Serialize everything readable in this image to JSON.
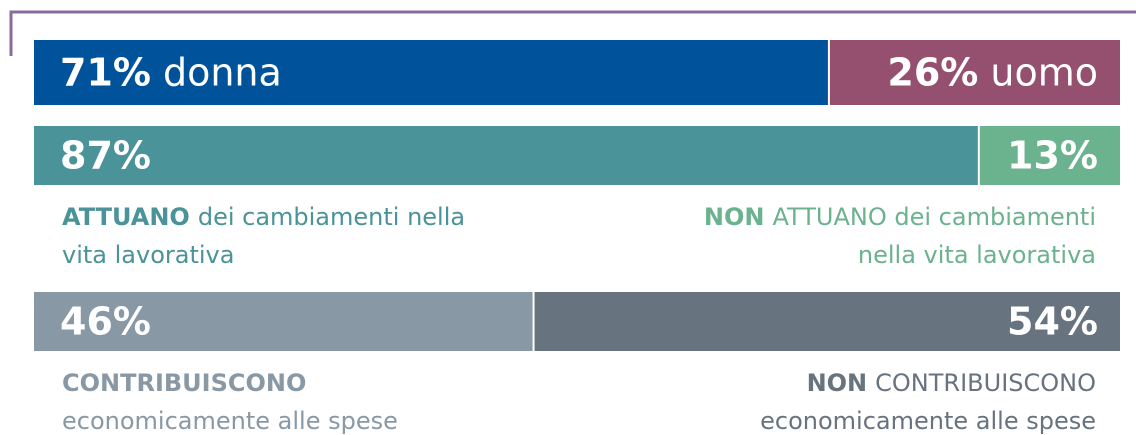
{
  "chart_data": [
    {
      "type": "stacked-bar",
      "series": [
        {
          "name": "donna",
          "color": "#00529b",
          "values": [
            71
          ],
          "value_labels": [
            "71%"
          ]
        },
        {
          "name": "uomo",
          "color": "#96506f",
          "values": [
            26
          ],
          "value_labels": [
            "26%"
          ]
        }
      ]
    },
    {
      "type": "stacked-bar",
      "series": [
        {
          "color": "#4a9399",
          "values": [
            87
          ],
          "value_labels": [
            "87%"
          ],
          "caption_lines": [
            [
              {
                "text": "ATTUANO",
                "strong": true
              },
              {
                "text": "dei cambiamenti nella"
              }
            ],
            [
              {
                "text": "vita lavorativa"
              }
            ]
          ]
        },
        {
          "color": "#6bb28f",
          "values": [
            13
          ],
          "value_labels": [
            "13%"
          ],
          "caption_lines": [
            [
              {
                "text": "NON",
                "strong": true
              },
              {
                "text": "ATTUANO dei cambiamenti"
              }
            ],
            [
              {
                "text": "nella vita lavorativa"
              }
            ]
          ]
        }
      ]
    },
    {
      "type": "stacked-bar",
      "series": [
        {
          "color": "#8898a5",
          "values": [
            46
          ],
          "value_labels": [
            "46%"
          ],
          "caption_lines": [
            [
              {
                "text": "CONTRIBUISCONO",
                "strong": true
              }
            ],
            [
              {
                "text": "economicamente alle spese"
              }
            ]
          ]
        },
        {
          "color": "#67737f",
          "values": [
            54
          ],
          "value_labels": [
            "54%"
          ],
          "caption_lines": [
            [
              {
                "text": "NON",
                "strong": true
              },
              {
                "text": "CONTRIBUISCONO"
              }
            ],
            [
              {
                "text": "economicamente alle spese"
              }
            ]
          ]
        }
      ]
    }
  ]
}
